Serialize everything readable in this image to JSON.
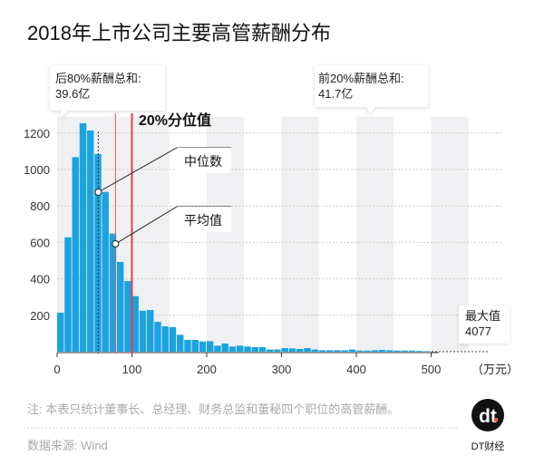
{
  "chart_data": {
    "type": "bar",
    "title": "2018年上市公司主要高管薪酬分布",
    "xlabel": "（万元）",
    "ylabel": "",
    "bin_width": 10,
    "x": [
      0,
      10,
      20,
      30,
      40,
      50,
      60,
      70,
      80,
      90,
      100,
      110,
      120,
      130,
      140,
      150,
      160,
      170,
      180,
      190,
      200,
      210,
      220,
      230,
      240,
      250,
      260,
      270,
      280,
      290,
      300,
      310,
      320,
      330,
      340,
      350,
      360,
      370,
      380,
      390,
      400,
      410,
      420,
      430,
      440,
      450,
      460,
      470,
      480,
      490
    ],
    "values": [
      214,
      628,
      1068,
      1254,
      1214,
      1085,
      877,
      648,
      493,
      388,
      305,
      225,
      229,
      164,
      139,
      135,
      93,
      65,
      65,
      56,
      58,
      33,
      45,
      28,
      33,
      28,
      25,
      25,
      12,
      12,
      20,
      18,
      15,
      20,
      12,
      8,
      8,
      8,
      8,
      12,
      6,
      6,
      8,
      10,
      8,
      6,
      6,
      6,
      4,
      3
    ],
    "xlim": [
      0,
      550
    ],
    "ylim": [
      0,
      1300
    ],
    "xticks": [
      0,
      100,
      200,
      300,
      400,
      500
    ],
    "yticks": [
      200,
      400,
      600,
      800,
      1000,
      1200
    ],
    "grid": true,
    "bar_color": "#1aa3e0",
    "markers": {
      "median": {
        "value": 55,
        "label": "中位数"
      },
      "mean": {
        "value": 78,
        "label": "平均值"
      },
      "p20": {
        "value": 100,
        "label": "20%分位值"
      }
    },
    "annotations": {
      "bottom80_line1": "后80%薪酬总和:",
      "bottom80_line2": "39.6亿",
      "top20_line1": "前20%薪酬总和:",
      "top20_line2": "41.7亿",
      "max_line1": "最大值",
      "max_line2": "4077"
    }
  },
  "footer": {
    "note": "注: 本表只统计董事长、总经理、财务总监和董秘四个职位的高管薪酬。",
    "source": "数据来源: Wind",
    "brand": "DT财经",
    "logo_text": "dt"
  }
}
